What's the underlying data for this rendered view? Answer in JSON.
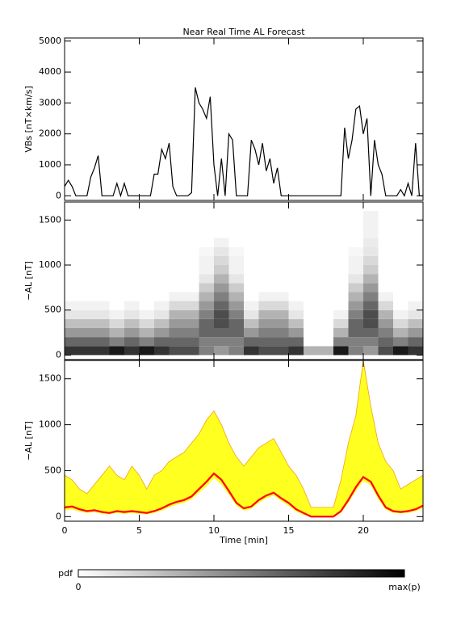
{
  "chart_data": [
    {
      "type": "line",
      "title": "Near Real Time AL Forecast",
      "ylabel": "VBs [nT×km/s]",
      "color": "#000000",
      "x": [
        0,
        0.25,
        0.5,
        0.75,
        1,
        1.25,
        1.5,
        1.75,
        2,
        2.25,
        2.5,
        2.75,
        3,
        3.25,
        3.5,
        3.75,
        4,
        4.25,
        4.5,
        4.75,
        5,
        5.25,
        5.5,
        5.75,
        6,
        6.25,
        6.5,
        6.75,
        7,
        7.25,
        7.5,
        7.75,
        8,
        8.25,
        8.5,
        8.75,
        9,
        9.25,
        9.5,
        9.75,
        10,
        10.25,
        10.5,
        10.75,
        11,
        11.25,
        11.5,
        11.75,
        12,
        12.25,
        12.5,
        12.75,
        13,
        13.25,
        13.5,
        13.75,
        14,
        14.25,
        14.5,
        14.75,
        15,
        15.25,
        15.5,
        15.75,
        16,
        16.25,
        16.5,
        16.75,
        17,
        17.25,
        17.5,
        17.75,
        18,
        18.25,
        18.5,
        18.75,
        19,
        19.25,
        19.5,
        19.75,
        20,
        20.25,
        20.5,
        20.75,
        21,
        21.25,
        21.5,
        21.75,
        22,
        22.25,
        22.5,
        22.75,
        23,
        23.25,
        23.5,
        23.75,
        24
      ],
      "values": [
        300,
        500,
        300,
        0,
        0,
        0,
        0,
        600,
        900,
        1300,
        0,
        0,
        0,
        0,
        400,
        0,
        400,
        0,
        0,
        0,
        0,
        0,
        0,
        0,
        700,
        700,
        1500,
        1200,
        1700,
        300,
        0,
        0,
        0,
        0,
        100,
        3500,
        3000,
        2800,
        2500,
        3200,
        1000,
        0,
        1200,
        0,
        2000,
        1800,
        0,
        0,
        0,
        0,
        1800,
        1500,
        1000,
        1700,
        800,
        1200,
        400,
        900,
        0,
        0,
        0,
        0,
        0,
        0,
        0,
        0,
        0,
        0,
        0,
        0,
        0,
        0,
        0,
        0,
        0,
        2200,
        1200,
        1800,
        2800,
        2900,
        2000,
        2500,
        0,
        1800,
        1000,
        700,
        0,
        0,
        0,
        0,
        200,
        0,
        400,
        0,
        1700,
        0,
        0
      ],
      "xlim": [
        0,
        24
      ],
      "ylim": [
        -150,
        5100
      ],
      "yticks": [
        0,
        1000,
        2000,
        3000,
        4000,
        5000
      ]
    },
    {
      "type": "heatmap",
      "ylabel": "−AL [nT]",
      "x_bins": [
        0,
        1,
        2,
        3,
        4,
        5,
        6,
        7,
        8,
        9,
        10,
        11,
        12,
        13,
        14,
        15,
        16,
        17,
        18,
        19,
        20,
        21,
        22,
        23,
        24
      ],
      "y_bins": [
        0,
        100,
        200,
        300,
        400,
        500,
        600,
        700,
        800,
        900,
        1000,
        1100,
        1200,
        1300,
        1400,
        1500,
        1600
      ],
      "z": [
        [
          0.8,
          0.6,
          0.4,
          0.25,
          0.1,
          0.05,
          0,
          0,
          0,
          0,
          0,
          0,
          0,
          0,
          0,
          0
        ],
        [
          0.8,
          0.6,
          0.4,
          0.25,
          0.1,
          0.05,
          0,
          0,
          0,
          0,
          0,
          0,
          0,
          0,
          0,
          0
        ],
        [
          0.8,
          0.6,
          0.4,
          0.25,
          0.1,
          0.05,
          0,
          0,
          0,
          0,
          0,
          0,
          0,
          0,
          0,
          0
        ],
        [
          0.9,
          0.5,
          0.3,
          0.15,
          0.05,
          0,
          0,
          0,
          0,
          0,
          0,
          0,
          0,
          0,
          0,
          0
        ],
        [
          0.8,
          0.6,
          0.4,
          0.25,
          0.1,
          0.05,
          0,
          0,
          0,
          0,
          0,
          0,
          0,
          0,
          0,
          0
        ],
        [
          0.9,
          0.5,
          0.3,
          0.15,
          0.05,
          0,
          0,
          0,
          0,
          0,
          0,
          0,
          0,
          0,
          0,
          0
        ],
        [
          0.8,
          0.6,
          0.4,
          0.25,
          0.1,
          0.05,
          0,
          0,
          0,
          0,
          0,
          0,
          0,
          0,
          0,
          0
        ],
        [
          0.7,
          0.6,
          0.5,
          0.4,
          0.3,
          0.15,
          0.05,
          0,
          0,
          0,
          0,
          0,
          0,
          0,
          0,
          0
        ],
        [
          0.7,
          0.6,
          0.5,
          0.4,
          0.3,
          0.15,
          0.05,
          0,
          0,
          0,
          0,
          0,
          0,
          0,
          0,
          0
        ],
        [
          0.5,
          0.5,
          0.6,
          0.6,
          0.5,
          0.4,
          0.3,
          0.2,
          0.1,
          0.05,
          0.05,
          0.03,
          0,
          0,
          0,
          0
        ],
        [
          0.4,
          0.5,
          0.6,
          0.7,
          0.7,
          0.6,
          0.5,
          0.4,
          0.3,
          0.2,
          0.15,
          0.1,
          0.05,
          0,
          0,
          0
        ],
        [
          0.5,
          0.5,
          0.6,
          0.6,
          0.5,
          0.4,
          0.3,
          0.2,
          0.1,
          0.05,
          0.05,
          0.03,
          0,
          0,
          0,
          0
        ],
        [
          0.8,
          0.6,
          0.4,
          0.25,
          0.1,
          0.05,
          0,
          0,
          0,
          0,
          0,
          0,
          0,
          0,
          0,
          0
        ],
        [
          0.7,
          0.6,
          0.5,
          0.4,
          0.3,
          0.15,
          0.05,
          0,
          0,
          0,
          0,
          0,
          0,
          0,
          0,
          0
        ],
        [
          0.7,
          0.6,
          0.5,
          0.4,
          0.3,
          0.15,
          0.05,
          0,
          0,
          0,
          0,
          0,
          0,
          0,
          0,
          0
        ],
        [
          0.8,
          0.6,
          0.4,
          0.25,
          0.1,
          0.05,
          0,
          0,
          0,
          0,
          0,
          0,
          0,
          0,
          0,
          0
        ],
        [
          0.3,
          0,
          0,
          0,
          0,
          0,
          0,
          0,
          0,
          0,
          0,
          0,
          0,
          0,
          0,
          0
        ],
        [
          0.3,
          0,
          0,
          0,
          0,
          0,
          0,
          0,
          0,
          0,
          0,
          0,
          0,
          0,
          0,
          0
        ],
        [
          0.9,
          0.5,
          0.3,
          0.15,
          0.05,
          0,
          0,
          0,
          0,
          0,
          0,
          0,
          0,
          0,
          0,
          0
        ],
        [
          0.5,
          0.5,
          0.6,
          0.6,
          0.5,
          0.4,
          0.3,
          0.2,
          0.1,
          0.05,
          0.05,
          0.03,
          0,
          0,
          0,
          0
        ],
        [
          0.4,
          0.5,
          0.6,
          0.7,
          0.7,
          0.6,
          0.5,
          0.4,
          0.3,
          0.2,
          0.15,
          0.1,
          0.08,
          0.05,
          0.05,
          0.05
        ],
        [
          0.7,
          0.6,
          0.5,
          0.4,
          0.3,
          0.15,
          0.05,
          0,
          0,
          0,
          0,
          0,
          0,
          0,
          0,
          0
        ],
        [
          0.9,
          0.5,
          0.3,
          0.15,
          0.05,
          0,
          0,
          0,
          0,
          0,
          0,
          0,
          0,
          0,
          0,
          0
        ],
        [
          0.8,
          0.6,
          0.4,
          0.25,
          0.1,
          0.05,
          0,
          0,
          0,
          0,
          0,
          0,
          0,
          0,
          0,
          0
        ]
      ],
      "xlim": [
        0,
        24
      ],
      "ylim": [
        -50,
        1700
      ],
      "yticks": [
        0,
        500,
        1000,
        1500
      ],
      "colorbar": {
        "label": "pdf",
        "min_label": "0",
        "max_label": "max(p)"
      }
    },
    {
      "type": "band",
      "ylabel": "−AL [nT]",
      "xlabel": "Time [min]",
      "band_color": "#ffff20",
      "edge_color": "#f0a020",
      "line_color": "#ff0000",
      "x": [
        0,
        0.5,
        1,
        1.5,
        2,
        2.5,
        3,
        3.5,
        4,
        4.5,
        5,
        5.5,
        6,
        6.5,
        7,
        7.5,
        8,
        8.5,
        9,
        9.5,
        10,
        10.5,
        11,
        11.5,
        12,
        12.5,
        13,
        13.5,
        14,
        14.5,
        15,
        15.5,
        16,
        16.5,
        17,
        17.5,
        18,
        18.5,
        19,
        19.5,
        20,
        20.5,
        21,
        21.5,
        22,
        22.5,
        23,
        23.5,
        24
      ],
      "upper": [
        450,
        400,
        300,
        250,
        350,
        450,
        550,
        450,
        400,
        550,
        450,
        300,
        450,
        500,
        600,
        650,
        700,
        800,
        900,
        1050,
        1150,
        1000,
        800,
        650,
        550,
        650,
        750,
        800,
        850,
        700,
        550,
        450,
        300,
        100,
        100,
        100,
        100,
        400,
        800,
        1100,
        1700,
        1200,
        800,
        600,
        500,
        300,
        350,
        400,
        450
      ],
      "lower": [
        70,
        80,
        55,
        40,
        50,
        30,
        25,
        40,
        30,
        40,
        30,
        25,
        40,
        65,
        100,
        130,
        150,
        190,
        260,
        330,
        420,
        350,
        240,
        120,
        65,
        85,
        150,
        200,
        230,
        170,
        120,
        55,
        20,
        0,
        0,
        0,
        0,
        40,
        150,
        280,
        390,
        340,
        190,
        75,
        40,
        35,
        40,
        60,
        90
      ],
      "median": [
        100,
        110,
        80,
        60,
        70,
        50,
        40,
        60,
        50,
        60,
        50,
        40,
        60,
        90,
        130,
        160,
        180,
        220,
        300,
        380,
        470,
        400,
        280,
        150,
        90,
        110,
        180,
        230,
        260,
        200,
        150,
        80,
        40,
        0,
        0,
        0,
        0,
        60,
        180,
        320,
        430,
        380,
        230,
        100,
        60,
        50,
        60,
        80,
        120
      ],
      "xlim": [
        0,
        24
      ],
      "xticks": [
        0,
        5,
        10,
        15,
        20
      ],
      "ylim": [
        -50,
        1700
      ],
      "yticks": [
        0,
        500,
        1000,
        1500
      ]
    }
  ]
}
